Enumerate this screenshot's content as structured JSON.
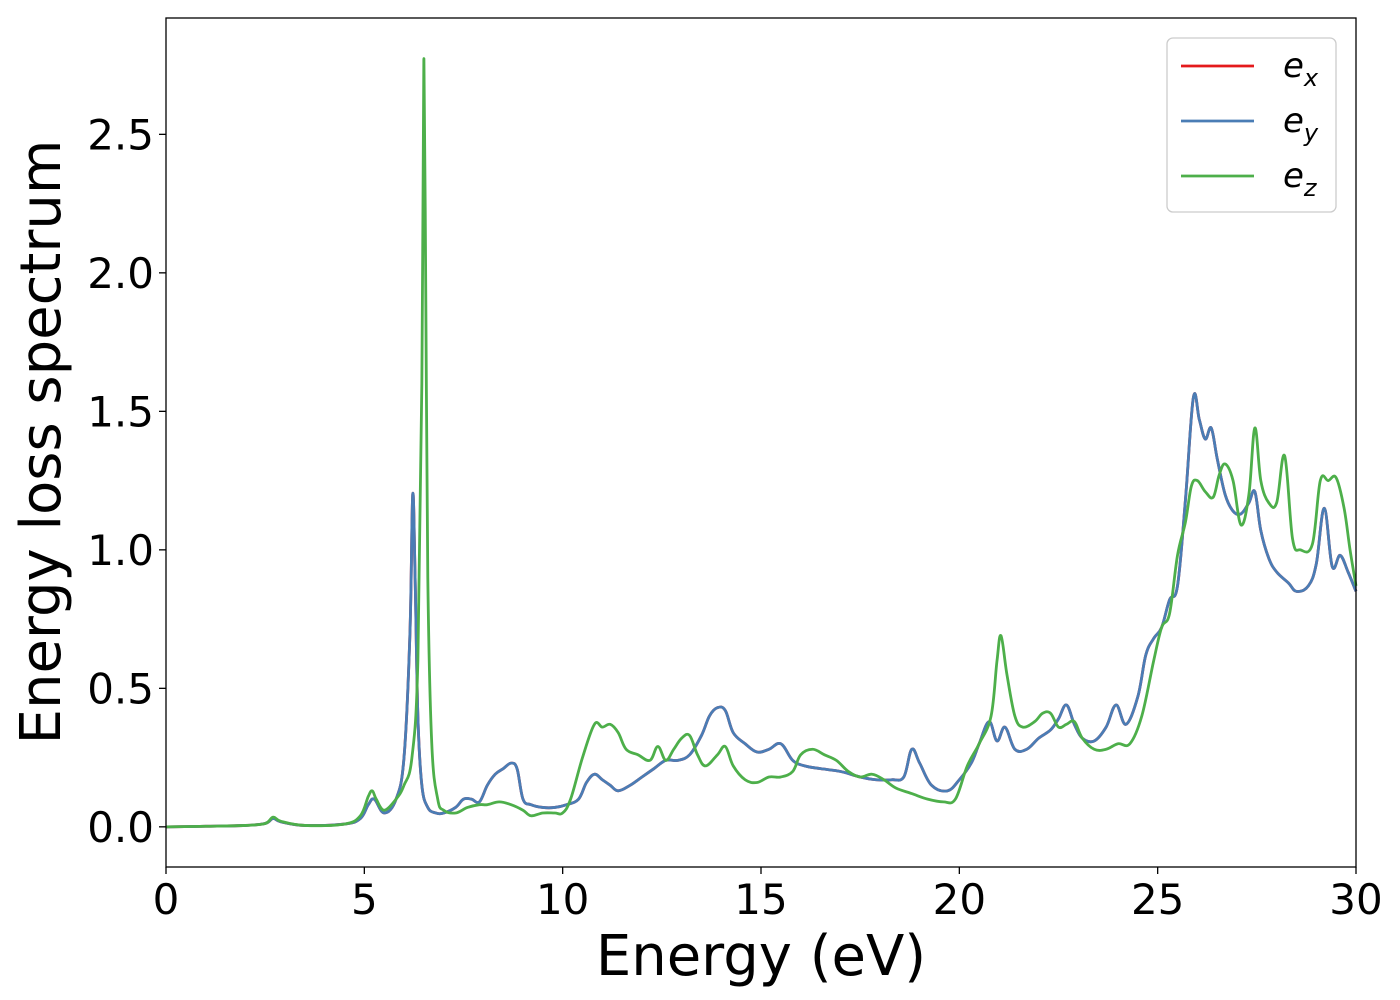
{
  "chart_data": {
    "type": "line",
    "title": "",
    "xlabel": "Energy (eV)",
    "ylabel": "Energy loss spectrum",
    "xlim": [
      0,
      30
    ],
    "ylim": [
      -0.145,
      2.92
    ],
    "xticks": [
      0,
      5,
      10,
      15,
      20,
      25,
      30
    ],
    "xtick_labels": [
      "0",
      "5",
      "10",
      "15",
      "20",
      "25",
      "30"
    ],
    "yticks": [
      0.0,
      0.5,
      1.0,
      1.5,
      2.0,
      2.5
    ],
    "ytick_labels": [
      "0.0",
      "0.5",
      "1.0",
      "1.5",
      "2.0",
      "2.5"
    ],
    "grid": false,
    "legend_position": "top-right",
    "series": [
      {
        "name": "e_x",
        "legend_base": "e",
        "legend_sub": "x",
        "color": "#e41a1c",
        "x": [
          0,
          1,
          2,
          2.5,
          2.7,
          2.9,
          3.5,
          4.5,
          4.9,
          5.1,
          5.25,
          5.5,
          5.8,
          6.0,
          6.15,
          6.22,
          6.28,
          6.35,
          6.45,
          6.6,
          6.8,
          7.0,
          7.3,
          7.5,
          7.7,
          7.9,
          8.1,
          8.3,
          8.5,
          8.7,
          8.85,
          9.0,
          9.2,
          9.5,
          9.8,
          10.1,
          10.4,
          10.6,
          10.8,
          11.0,
          11.2,
          11.4,
          11.7,
          12.0,
          12.3,
          12.6,
          12.9,
          13.2,
          13.5,
          13.7,
          13.9,
          14.1,
          14.3,
          14.6,
          14.9,
          15.2,
          15.5,
          15.8,
          16.1,
          16.5,
          17.0,
          17.5,
          17.9,
          18.3,
          18.6,
          18.8,
          19.0,
          19.3,
          19.7,
          20.0,
          20.3,
          20.5,
          20.75,
          20.95,
          21.15,
          21.4,
          21.7,
          22.0,
          22.3,
          22.5,
          22.7,
          22.9,
          23.1,
          23.4,
          23.7,
          23.95,
          24.2,
          24.5,
          24.7,
          24.9,
          25.1,
          25.3,
          25.5,
          25.7,
          25.9,
          26.05,
          26.2,
          26.35,
          26.5,
          26.7,
          26.9,
          27.1,
          27.3,
          27.45,
          27.6,
          27.8,
          28.0,
          28.3,
          28.5,
          28.8,
          29.0,
          29.2,
          29.4,
          29.6,
          29.8,
          30.0
        ],
        "y": [
          0.0,
          0.002,
          0.005,
          0.012,
          0.03,
          0.018,
          0.005,
          0.01,
          0.03,
          0.08,
          0.1,
          0.05,
          0.1,
          0.25,
          0.7,
          1.2,
          0.9,
          0.4,
          0.15,
          0.07,
          0.05,
          0.05,
          0.07,
          0.1,
          0.1,
          0.09,
          0.15,
          0.19,
          0.21,
          0.23,
          0.21,
          0.1,
          0.08,
          0.07,
          0.07,
          0.08,
          0.1,
          0.16,
          0.19,
          0.17,
          0.15,
          0.13,
          0.15,
          0.18,
          0.21,
          0.24,
          0.24,
          0.26,
          0.33,
          0.4,
          0.43,
          0.42,
          0.34,
          0.3,
          0.27,
          0.28,
          0.3,
          0.24,
          0.22,
          0.21,
          0.2,
          0.18,
          0.17,
          0.17,
          0.18,
          0.28,
          0.23,
          0.15,
          0.13,
          0.17,
          0.23,
          0.3,
          0.38,
          0.31,
          0.36,
          0.28,
          0.28,
          0.32,
          0.35,
          0.39,
          0.44,
          0.37,
          0.32,
          0.31,
          0.36,
          0.44,
          0.37,
          0.47,
          0.62,
          0.68,
          0.72,
          0.82,
          0.87,
          1.18,
          1.55,
          1.47,
          1.4,
          1.44,
          1.33,
          1.2,
          1.14,
          1.13,
          1.17,
          1.21,
          1.07,
          0.97,
          0.92,
          0.88,
          0.85,
          0.87,
          0.95,
          1.15,
          0.94,
          0.98,
          0.92,
          0.85
        ]
      },
      {
        "name": "e_y",
        "legend_base": "e",
        "legend_sub": "y",
        "color": "#4a7db5",
        "x": [
          0,
          1,
          2,
          2.5,
          2.7,
          2.9,
          3.5,
          4.5,
          4.9,
          5.1,
          5.25,
          5.5,
          5.8,
          6.0,
          6.15,
          6.22,
          6.28,
          6.35,
          6.45,
          6.6,
          6.8,
          7.0,
          7.3,
          7.5,
          7.7,
          7.9,
          8.1,
          8.3,
          8.5,
          8.7,
          8.85,
          9.0,
          9.2,
          9.5,
          9.8,
          10.1,
          10.4,
          10.6,
          10.8,
          11.0,
          11.2,
          11.4,
          11.7,
          12.0,
          12.3,
          12.6,
          12.9,
          13.2,
          13.5,
          13.7,
          13.9,
          14.1,
          14.3,
          14.6,
          14.9,
          15.2,
          15.5,
          15.8,
          16.1,
          16.5,
          17.0,
          17.5,
          17.9,
          18.3,
          18.6,
          18.8,
          19.0,
          19.3,
          19.7,
          20.0,
          20.3,
          20.5,
          20.75,
          20.95,
          21.15,
          21.4,
          21.7,
          22.0,
          22.3,
          22.5,
          22.7,
          22.9,
          23.1,
          23.4,
          23.7,
          23.95,
          24.2,
          24.5,
          24.7,
          24.9,
          25.1,
          25.3,
          25.5,
          25.7,
          25.9,
          26.05,
          26.2,
          26.35,
          26.5,
          26.7,
          26.9,
          27.1,
          27.3,
          27.45,
          27.6,
          27.8,
          28.0,
          28.3,
          28.5,
          28.8,
          29.0,
          29.2,
          29.4,
          29.6,
          29.8,
          30.0
        ],
        "y": [
          0.0,
          0.002,
          0.005,
          0.012,
          0.03,
          0.018,
          0.005,
          0.01,
          0.03,
          0.08,
          0.1,
          0.05,
          0.1,
          0.25,
          0.7,
          1.2,
          0.9,
          0.4,
          0.15,
          0.07,
          0.05,
          0.05,
          0.07,
          0.1,
          0.1,
          0.09,
          0.15,
          0.19,
          0.21,
          0.23,
          0.21,
          0.1,
          0.08,
          0.07,
          0.07,
          0.08,
          0.1,
          0.16,
          0.19,
          0.17,
          0.15,
          0.13,
          0.15,
          0.18,
          0.21,
          0.24,
          0.24,
          0.26,
          0.33,
          0.4,
          0.43,
          0.42,
          0.34,
          0.3,
          0.27,
          0.28,
          0.3,
          0.24,
          0.22,
          0.21,
          0.2,
          0.18,
          0.17,
          0.17,
          0.18,
          0.28,
          0.23,
          0.15,
          0.13,
          0.17,
          0.23,
          0.3,
          0.38,
          0.31,
          0.36,
          0.28,
          0.28,
          0.32,
          0.35,
          0.39,
          0.44,
          0.37,
          0.32,
          0.31,
          0.36,
          0.44,
          0.37,
          0.47,
          0.62,
          0.68,
          0.72,
          0.82,
          0.87,
          1.18,
          1.55,
          1.47,
          1.4,
          1.44,
          1.33,
          1.2,
          1.14,
          1.13,
          1.17,
          1.21,
          1.07,
          0.97,
          0.92,
          0.88,
          0.85,
          0.87,
          0.95,
          1.15,
          0.94,
          0.98,
          0.92,
          0.85
        ]
      },
      {
        "name": "e_z",
        "legend_base": "e",
        "legend_sub": "z",
        "color": "#4daf4a",
        "x": [
          0,
          1,
          2,
          2.5,
          2.7,
          2.9,
          3.5,
          4.5,
          4.9,
          5.1,
          5.2,
          5.3,
          5.5,
          5.8,
          6.0,
          6.2,
          6.35,
          6.45,
          6.5,
          6.55,
          6.6,
          6.7,
          6.85,
          7.0,
          7.3,
          7.6,
          7.9,
          8.1,
          8.4,
          8.7,
          9.0,
          9.2,
          9.5,
          9.8,
          10.0,
          10.2,
          10.5,
          10.8,
          11.0,
          11.2,
          11.4,
          11.6,
          11.9,
          12.2,
          12.4,
          12.6,
          12.8,
          13.0,
          13.2,
          13.4,
          13.6,
          13.9,
          14.1,
          14.3,
          14.6,
          14.9,
          15.2,
          15.5,
          15.8,
          16.0,
          16.3,
          16.6,
          16.9,
          17.2,
          17.5,
          17.8,
          18.1,
          18.4,
          18.8,
          19.2,
          19.6,
          19.9,
          20.2,
          20.5,
          20.8,
          20.95,
          21.05,
          21.2,
          21.4,
          21.6,
          21.9,
          22.1,
          22.3,
          22.5,
          22.7,
          22.9,
          23.1,
          23.4,
          23.7,
          24.0,
          24.3,
          24.6,
          24.9,
          25.1,
          25.3,
          25.5,
          25.7,
          25.85,
          26.0,
          26.2,
          26.4,
          26.55,
          26.7,
          26.9,
          27.1,
          27.3,
          27.45,
          27.6,
          27.8,
          28.0,
          28.2,
          28.4,
          28.6,
          28.9,
          29.1,
          29.3,
          29.5,
          29.7,
          29.85,
          30.0
        ],
        "y": [
          0.0,
          0.002,
          0.005,
          0.012,
          0.035,
          0.02,
          0.005,
          0.01,
          0.04,
          0.11,
          0.13,
          0.1,
          0.06,
          0.1,
          0.15,
          0.25,
          0.6,
          1.6,
          2.77,
          1.9,
          0.9,
          0.3,
          0.1,
          0.06,
          0.05,
          0.07,
          0.08,
          0.08,
          0.09,
          0.08,
          0.06,
          0.04,
          0.05,
          0.05,
          0.05,
          0.1,
          0.25,
          0.37,
          0.36,
          0.37,
          0.34,
          0.28,
          0.26,
          0.24,
          0.29,
          0.24,
          0.28,
          0.32,
          0.33,
          0.26,
          0.22,
          0.26,
          0.29,
          0.22,
          0.17,
          0.16,
          0.18,
          0.18,
          0.2,
          0.26,
          0.28,
          0.26,
          0.24,
          0.2,
          0.18,
          0.19,
          0.17,
          0.14,
          0.12,
          0.1,
          0.09,
          0.1,
          0.22,
          0.3,
          0.4,
          0.6,
          0.69,
          0.55,
          0.4,
          0.36,
          0.38,
          0.41,
          0.41,
          0.36,
          0.37,
          0.38,
          0.32,
          0.28,
          0.28,
          0.3,
          0.3,
          0.4,
          0.6,
          0.72,
          0.77,
          0.98,
          1.1,
          1.23,
          1.25,
          1.21,
          1.19,
          1.27,
          1.31,
          1.25,
          1.09,
          1.2,
          1.44,
          1.25,
          1.17,
          1.17,
          1.34,
          1.04,
          1.0,
          1.02,
          1.25,
          1.25,
          1.26,
          1.15,
          1.0,
          0.87
        ]
      }
    ]
  }
}
